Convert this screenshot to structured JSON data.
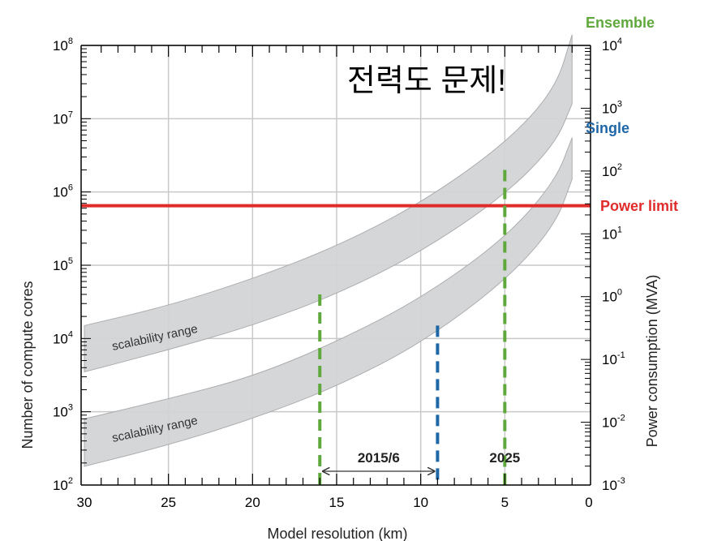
{
  "chart_data": {
    "type": "line",
    "title": "전력도 문제!",
    "xlabel": "Model resolution (km)",
    "ylabel_left": "Number of compute cores",
    "ylabel_right": "Power consumption (MVA)",
    "x_range": [
      30,
      0
    ],
    "x_reversed": true,
    "y_left_scale": "log",
    "y_left_range": [
      100,
      100000000
    ],
    "y_right_scale": "log",
    "y_right_range": [
      0.001,
      10000
    ],
    "grid": true,
    "x_ticks": [
      "30",
      "25",
      "20",
      "15",
      "10",
      "5",
      "0"
    ],
    "x_tick_values": [
      30,
      25,
      20,
      15,
      10,
      5,
      0
    ],
    "y_left_ticks": [
      {
        "value": 100,
        "base": "10",
        "exp": "2"
      },
      {
        "value": 1000,
        "base": "10",
        "exp": "3"
      },
      {
        "value": 10000,
        "base": "10",
        "exp": "4"
      },
      {
        "value": 100000,
        "base": "10",
        "exp": "5"
      },
      {
        "value": 1000000,
        "base": "10",
        "exp": "6"
      },
      {
        "value": 10000000,
        "base": "10",
        "exp": "7"
      },
      {
        "value": 100000000,
        "base": "10",
        "exp": "8"
      }
    ],
    "y_right_ticks": [
      {
        "value": 0.001,
        "base": "10",
        "exp": "-3"
      },
      {
        "value": 0.01,
        "base": "10",
        "exp": "-2"
      },
      {
        "value": 0.1,
        "base": "10",
        "exp": "-1"
      },
      {
        "value": 1,
        "base": "10",
        "exp": "0"
      },
      {
        "value": 10,
        "base": "10",
        "exp": "1"
      },
      {
        "value": 100,
        "base": "10",
        "exp": "2"
      },
      {
        "value": 1000,
        "base": "10",
        "exp": "3"
      },
      {
        "value": 10000,
        "base": "10",
        "exp": "4"
      }
    ],
    "bands": [
      {
        "name": "Ensemble",
        "label": "scalability range",
        "x": [
          30,
          25,
          20,
          15,
          10,
          5,
          2,
          1
        ],
        "upper": [
          15000,
          28000,
          65000,
          180000,
          700000,
          4500000,
          25000000,
          140000000
        ],
        "lower": [
          3500,
          7000,
          15000,
          40000,
          150000,
          900000,
          4500000,
          16000000
        ]
      },
      {
        "name": "Single",
        "label": "scalability range",
        "x": [
          30,
          25,
          20,
          15,
          10,
          5,
          2,
          1
        ],
        "upper": [
          800,
          1500,
          3000,
          9000,
          35000,
          230000,
          1400000,
          5500000
        ],
        "lower": [
          180,
          350,
          800,
          2200,
          8500,
          60000,
          350000,
          1500000
        ]
      }
    ],
    "power_limit": {
      "label": "Power limit",
      "cores": 650000
    },
    "series_labels": {
      "ensemble": "Ensemble",
      "single": "Single"
    },
    "markers": [
      {
        "x": 16,
        "top_cores": 40000,
        "kind": "ensemble"
      },
      {
        "x": 9,
        "top_cores": 15000,
        "kind": "single"
      },
      {
        "x": 5,
        "top_cores": 2000000,
        "kind": "ensemble"
      }
    ],
    "period_labels": [
      {
        "text": "2015/6",
        "x": 12.5,
        "arrow_from": 16,
        "arrow_to": 9
      },
      {
        "text": "2025",
        "x": 5,
        "arrow_from": null,
        "arrow_to": null
      }
    ],
    "colors": {
      "ensemble": "#5fa83c",
      "single": "#1f66a7",
      "power_limit": "#e02b2b",
      "band_fill": "#d3d4d6",
      "band_stroke": "#a8a9ab",
      "grid": "#c9c9c9"
    }
  }
}
